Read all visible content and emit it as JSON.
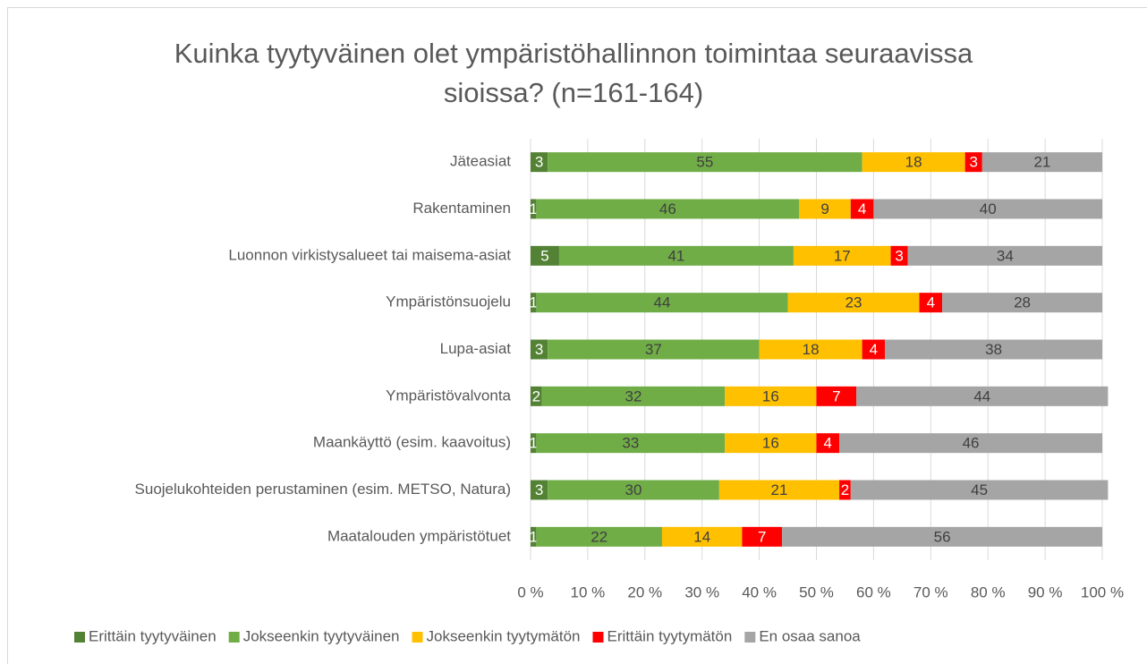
{
  "chart_data": {
    "type": "stacked_bar_horizontal",
    "title": "Kuinka tyytyväinen olet ympäristöhallinnon toimintaa seuraavissa sioissa? (n=161-164)",
    "categories": [
      "Jäteasiat",
      "Rakentaminen",
      "Luonnon virkistysalueet tai maisema-asiat",
      "Ympäristönsuojelu",
      "Lupa-asiat",
      "Ympäristövalvonta",
      "Maankäyttö (esim. kaavoitus)",
      "Suojelukohteiden perustaminen (esim. METSO, Natura)",
      "Maatalouden ympäristötuet"
    ],
    "series": [
      {
        "name": "Erittäin tyytyväinen",
        "color": "#548235",
        "values": [
          3,
          1,
          5,
          1,
          3,
          2,
          1,
          3,
          1
        ]
      },
      {
        "name": "Jokseenkin tyytyväinen",
        "color": "#70ad47",
        "values": [
          55,
          46,
          41,
          44,
          37,
          32,
          33,
          30,
          22
        ]
      },
      {
        "name": "Jokseenkin tyytymätön",
        "color": "#ffc000",
        "values": [
          18,
          9,
          17,
          23,
          18,
          16,
          16,
          21,
          14
        ]
      },
      {
        "name": "Erittäin tyytymätön",
        "color": "#ff0000",
        "values": [
          3,
          4,
          3,
          4,
          4,
          7,
          4,
          2,
          7
        ]
      },
      {
        "name": "En osaa sanoa",
        "color": "#a5a5a5",
        "values": [
          21,
          40,
          34,
          28,
          38,
          44,
          46,
          45,
          56
        ]
      }
    ],
    "xlim": [
      0,
      100
    ],
    "xticks": [
      {
        "value": 0,
        "label": "0 %"
      },
      {
        "value": 10,
        "label": "10 %"
      },
      {
        "value": 20,
        "label": "20 %"
      },
      {
        "value": 30,
        "label": "30 %"
      },
      {
        "value": 40,
        "label": "40 %"
      },
      {
        "value": 50,
        "label": "50 %"
      },
      {
        "value": 60,
        "label": "60 %"
      },
      {
        "value": 70,
        "label": "70 %"
      },
      {
        "value": 80,
        "label": "80 %"
      },
      {
        "value": 90,
        "label": "90 %"
      },
      {
        "value": 100,
        "label": "100 %"
      }
    ],
    "grid": true,
    "legend": "bottom"
  }
}
